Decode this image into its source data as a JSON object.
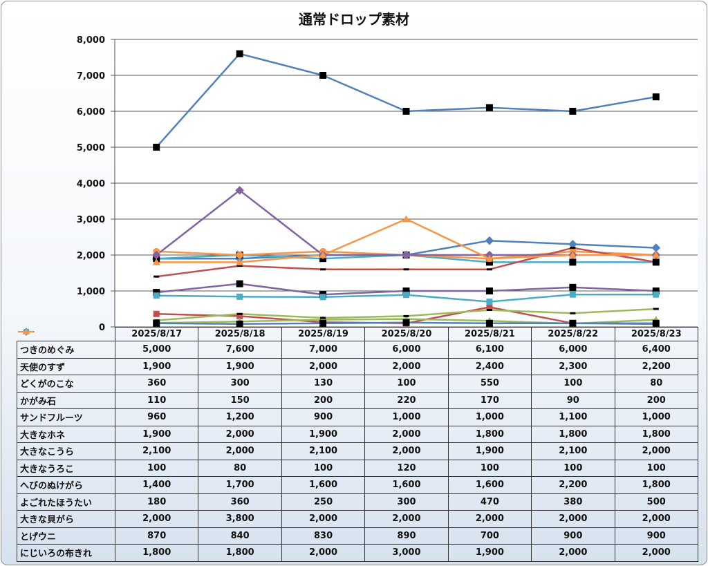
{
  "chart_data": {
    "type": "line",
    "title": "通常ドロップ素材",
    "categories": [
      "2025/8/17",
      "2025/8/18",
      "2025/8/19",
      "2025/8/20",
      "2025/8/21",
      "2025/8/22",
      "2025/8/23"
    ],
    "ylim": [
      0,
      8000
    ],
    "yticks": [
      "0",
      "1,000",
      "2,000",
      "3,000",
      "4,000",
      "5,000",
      "6,000",
      "7,000",
      "8,000"
    ],
    "grid": true,
    "legend": "data-table",
    "series": [
      {
        "name": "つきのめぐみ",
        "color": "#4f81bd",
        "marker": "square",
        "marker_color": "#000000",
        "values": [
          5000,
          7600,
          7000,
          6000,
          6100,
          6000,
          6400
        ],
        "labels": [
          "5,000",
          "7,600",
          "7,000",
          "6,000",
          "6,100",
          "6,000",
          "6,400"
        ]
      },
      {
        "name": "天使のすず",
        "color": "#4f81bd",
        "marker": "diamond",
        "marker_color": "#4f81bd",
        "values": [
          1900,
          1900,
          2000,
          2000,
          2400,
          2300,
          2200
        ],
        "labels": [
          "1,900",
          "1,900",
          "2,000",
          "2,000",
          "2,400",
          "2,300",
          "2,200"
        ]
      },
      {
        "name": "どくがのこな",
        "color": "#c0504d",
        "marker": "square",
        "marker_color": "#c0504d",
        "values": [
          360,
          300,
          130,
          100,
          550,
          100,
          80
        ],
        "labels": [
          "360",
          "300",
          "130",
          "100",
          "550",
          "100",
          "80"
        ]
      },
      {
        "name": "かがみ石",
        "color": "#9bbb59",
        "marker": "triangle",
        "marker_color": "#9bbb59",
        "values": [
          110,
          150,
          200,
          220,
          170,
          90,
          200
        ],
        "labels": [
          "110",
          "150",
          "200",
          "220",
          "170",
          "90",
          "200"
        ]
      },
      {
        "name": "サンドフルーツ",
        "color": "#8064a2",
        "marker": "square",
        "marker_color": "#000000",
        "values": [
          960,
          1200,
          900,
          1000,
          1000,
          1100,
          1000
        ],
        "labels": [
          "960",
          "1,200",
          "900",
          "1,000",
          "1,000",
          "1,100",
          "1,000"
        ]
      },
      {
        "name": "大きなホネ",
        "color": "#4bacc6",
        "marker": "square",
        "marker_color": "#000000",
        "values": [
          1900,
          2000,
          1900,
          2000,
          1800,
          1800,
          1800
        ],
        "labels": [
          "1,900",
          "2,000",
          "1,900",
          "2,000",
          "1,800",
          "1,800",
          "1,800"
        ]
      },
      {
        "name": "大きなこうら",
        "color": "#f79646",
        "marker": "circle",
        "marker_color": "#f79646",
        "values": [
          2100,
          2000,
          2100,
          2000,
          1900,
          2100,
          2000
        ],
        "labels": [
          "2,100",
          "2,000",
          "2,100",
          "2,000",
          "1,900",
          "2,100",
          "2,000"
        ]
      },
      {
        "name": "大きなうろこ",
        "color": "#4f81bd",
        "marker": "square",
        "marker_color": "#000000",
        "values": [
          100,
          80,
          100,
          120,
          100,
          100,
          100
        ],
        "labels": [
          "100",
          "80",
          "100",
          "120",
          "100",
          "100",
          "100"
        ]
      },
      {
        "name": "へびのぬけがら",
        "color": "#c0504d",
        "marker": "dash",
        "marker_color": "#000000",
        "values": [
          1400,
          1700,
          1600,
          1600,
          1600,
          2200,
          1800
        ],
        "labels": [
          "1,400",
          "1,700",
          "1,600",
          "1,600",
          "1,600",
          "2,200",
          "1,800"
        ]
      },
      {
        "name": "よごれたほうたい",
        "color": "#9bbb59",
        "marker": "dash",
        "marker_color": "#000000",
        "values": [
          180,
          360,
          250,
          300,
          470,
          380,
          500
        ],
        "labels": [
          "180",
          "360",
          "250",
          "300",
          "470",
          "380",
          "500"
        ]
      },
      {
        "name": "大きな貝がら",
        "color": "#8064a2",
        "marker": "diamond",
        "marker_color": "#8064a2",
        "values": [
          2000,
          3800,
          2000,
          2000,
          2000,
          2000,
          2000
        ],
        "labels": [
          "2,000",
          "3,800",
          "2,000",
          "2,000",
          "2,000",
          "2,000",
          "2,000"
        ]
      },
      {
        "name": "とげウニ",
        "color": "#4bacc6",
        "marker": "square",
        "marker_color": "#4bacc6",
        "values": [
          870,
          840,
          830,
          890,
          700,
          900,
          900
        ],
        "labels": [
          "870",
          "840",
          "830",
          "890",
          "700",
          "900",
          "900"
        ]
      },
      {
        "name": "にじいろの布きれ",
        "color": "#f79646",
        "marker": "triangle",
        "marker_color": "#f79646",
        "values": [
          1800,
          1800,
          2000,
          3000,
          1900,
          2000,
          2000
        ],
        "labels": [
          "1,800",
          "1,800",
          "2,000",
          "3,000",
          "1,900",
          "2,000",
          "2,000"
        ]
      }
    ]
  }
}
